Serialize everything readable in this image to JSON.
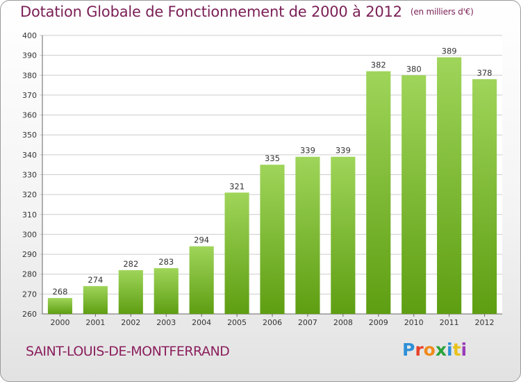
{
  "title": "Dotation Globale de Fonctionnement de 2000 à 2012",
  "unit_note": "(en milliers d'€)",
  "commune": "SAINT-LOUIS-DE-MONTFERRAND",
  "logo": {
    "text": "Proxiti",
    "colors": [
      "#2e8fd6",
      "#e8402a",
      "#f08a1c",
      "#2aa33a",
      "#2e8fd6",
      "#e8c21a",
      "#9a3ab8"
    ]
  },
  "colors": {
    "bar_top": "#9fd55a",
    "bar_bottom": "#5e9e12",
    "title": "#7a1f55",
    "grid": "#cccccc"
  },
  "chart_data": {
    "type": "bar",
    "categories": [
      "2000",
      "2001",
      "2002",
      "2003",
      "2004",
      "2005",
      "2006",
      "2007",
      "2008",
      "2009",
      "2010",
      "2011",
      "2012"
    ],
    "values": [
      268,
      274,
      282,
      283,
      294,
      321,
      335,
      339,
      339,
      382,
      380,
      389,
      378
    ],
    "ylim": [
      260,
      400
    ],
    "yticks": [
      260,
      270,
      280,
      290,
      300,
      310,
      320,
      330,
      340,
      350,
      360,
      370,
      380,
      390,
      400
    ],
    "grid": true,
    "data_labels": true
  }
}
